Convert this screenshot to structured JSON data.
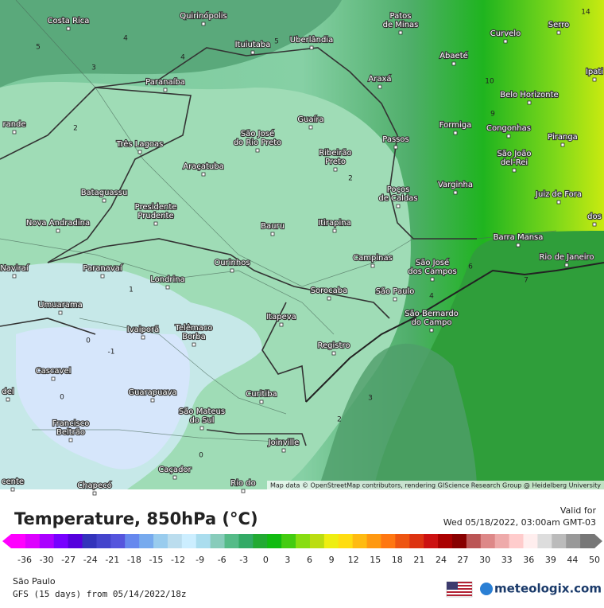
{
  "map": {
    "cities": [
      {
        "lines": [
          "Costa Rica"
        ]
      },
      {
        "lines": [
          "Quirinópolis"
        ]
      },
      {
        "lines": [
          "Ituiutaba"
        ]
      },
      {
        "lines": [
          "Uberlândia"
        ]
      },
      {
        "lines": [
          "Patos",
          "de Minas"
        ]
      },
      {
        "lines": [
          "Curvelo"
        ]
      },
      {
        "lines": [
          "Serro"
        ]
      },
      {
        "lines": [
          "Abaeté"
        ]
      },
      {
        "lines": [
          "Paranaíba"
        ]
      },
      {
        "lines": [
          "Araxá"
        ]
      },
      {
        "lines": [
          "Ipati"
        ]
      },
      {
        "lines": [
          "Belo Horizonte"
        ]
      },
      {
        "lines": [
          "Formiga"
        ]
      },
      {
        "lines": [
          "Congonhas"
        ]
      },
      {
        "lines": [
          "Piranga"
        ]
      },
      {
        "lines": [
          "Guaíra"
        ]
      },
      {
        "lines": [
          "São José",
          "do Rio Preto"
        ]
      },
      {
        "lines": [
          "Três Lagoas"
        ]
      },
      {
        "lines": [
          "Ribeirão",
          "Preto"
        ]
      },
      {
        "lines": [
          "Passos"
        ]
      },
      {
        "lines": [
          "São João",
          "del-Rei"
        ]
      },
      {
        "lines": [
          "Araçatuba"
        ]
      },
      {
        "lines": [
          "Varginha"
        ]
      },
      {
        "lines": [
          "Juiz de Fora"
        ]
      },
      {
        "lines": [
          "Poços",
          "de Caldas"
        ]
      },
      {
        "lines": [
          "Bataguassu"
        ]
      },
      {
        "lines": [
          "Presidente",
          "Prudente"
        ]
      },
      {
        "lines": [
          "dos"
        ]
      },
      {
        "lines": [
          "Nova Andradina"
        ]
      },
      {
        "lines": [
          "Bauru"
        ]
      },
      {
        "lines": [
          "Itirapina"
        ]
      },
      {
        "lines": [
          "Barra Mansa"
        ]
      },
      {
        "lines": [
          "Campinas"
        ]
      },
      {
        "lines": [
          "São José",
          "dos Campos"
        ]
      },
      {
        "lines": [
          "Rio de Janeiro"
        ]
      },
      {
        "lines": [
          "Naviraí"
        ]
      },
      {
        "lines": [
          "Paranavaí"
        ]
      },
      {
        "lines": [
          "Ourinhos"
        ]
      },
      {
        "lines": [
          "Londrina"
        ]
      },
      {
        "lines": [
          "Sorocaba"
        ]
      },
      {
        "lines": [
          "São Paulo"
        ]
      },
      {
        "lines": [
          "Umuarama"
        ]
      },
      {
        "lines": [
          "São Bernardo",
          "do Campo"
        ]
      },
      {
        "lines": [
          "Itapeva"
        ]
      },
      {
        "lines": [
          "Ivaiporã"
        ]
      },
      {
        "lines": [
          "Telêmaco",
          "Borba"
        ]
      },
      {
        "lines": [
          "Registro"
        ]
      },
      {
        "lines": [
          "Cascavel"
        ]
      },
      {
        "lines": [
          "Guarapuava"
        ]
      },
      {
        "lines": [
          "Curitiba"
        ]
      },
      {
        "lines": [
          "Francisco",
          "Beltrão"
        ]
      },
      {
        "lines": [
          "São Mateus",
          "do Sul"
        ]
      },
      {
        "lines": [
          "Joinville"
        ]
      },
      {
        "lines": [
          "Caçador"
        ]
      },
      {
        "lines": [
          "Chapecó"
        ]
      },
      {
        "lines": [
          "Rio do"
        ]
      },
      {
        "lines": [
          "rande"
        ]
      },
      {
        "lines": [
          "del"
        ]
      },
      {
        "lines": [
          "cente"
        ]
      }
    ],
    "contour_labels": [
      5,
      4,
      4,
      3,
      5,
      2,
      2,
      1,
      0,
      -1,
      0,
      0,
      3,
      2,
      4,
      6,
      7,
      10,
      9,
      14
    ],
    "attribution": "Map data © OpenStreetMap contributors, rendering GIScience Research Group @ Heidelberg University"
  },
  "footer": {
    "title": "Temperature, 850hPa (°C)",
    "valid_label": "Valid for",
    "valid_time": "Wed 05/18/2022, 03:00am GMT-03",
    "scale": [
      -36,
      -30,
      -27,
      -24,
      -21,
      -18,
      -15,
      -12,
      -9,
      -6,
      -3,
      0,
      3,
      6,
      9,
      12,
      15,
      18,
      21,
      24,
      27,
      30,
      33,
      36,
      39,
      44,
      50
    ],
    "location": "São Paulo",
    "model": "GFS (15 days) from 05/14/2022/18z",
    "brand": "meteologix.com"
  }
}
